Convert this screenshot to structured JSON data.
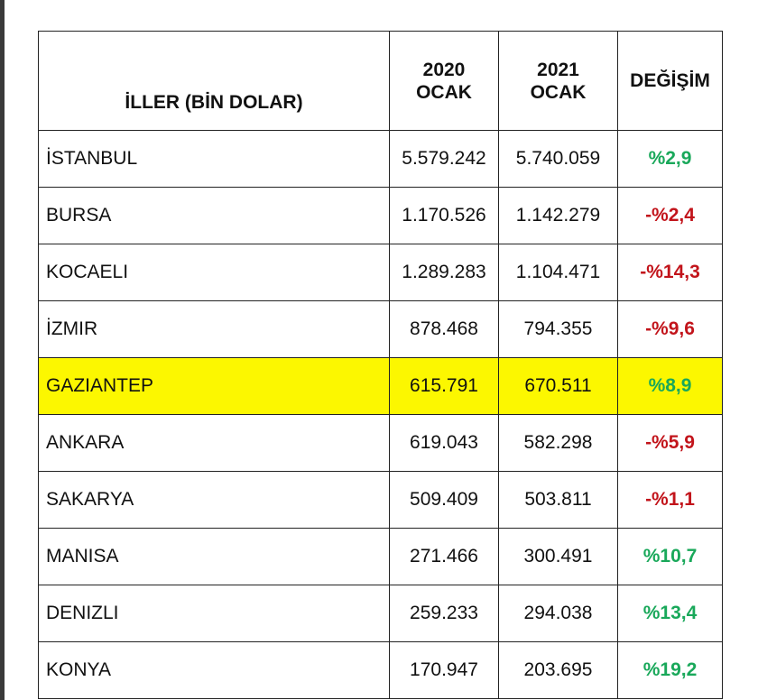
{
  "table": {
    "headers": {
      "province": "İLLER (BİN DOLAR)",
      "year2020": [
        "2020",
        "OCAK"
      ],
      "year2021": [
        "2021",
        "OCAK"
      ],
      "change": "DEĞİŞİM"
    },
    "highlight_color": "#fcf700",
    "positive_color": "#19a85a",
    "negative_color": "#c2141b",
    "rows": [
      {
        "province": "İSTANBUL",
        "v2020": "5.579.242",
        "v2021": "5.740.059",
        "change": "%2,9",
        "trend": "pos",
        "highlight": false
      },
      {
        "province": "BURSA",
        "v2020": "1.170.526",
        "v2021": "1.142.279",
        "change": "-%2,4",
        "trend": "neg",
        "highlight": false
      },
      {
        "province": "KOCAELI",
        "v2020": "1.289.283",
        "v2021": "1.104.471",
        "change": "-%14,3",
        "trend": "neg",
        "highlight": false
      },
      {
        "province": "İZMIR",
        "v2020": "878.468",
        "v2021": "794.355",
        "change": "-%9,6",
        "trend": "neg",
        "highlight": false
      },
      {
        "province": "GAZIANTEP",
        "v2020": "615.791",
        "v2021": "670.511",
        "change": "%8,9",
        "trend": "pos",
        "highlight": true
      },
      {
        "province": "ANKARA",
        "v2020": "619.043",
        "v2021": "582.298",
        "change": "-%5,9",
        "trend": "neg",
        "highlight": false
      },
      {
        "province": "SAKARYA",
        "v2020": "509.409",
        "v2021": "503.811",
        "change": "-%1,1",
        "trend": "neg",
        "highlight": false
      },
      {
        "province": "MANISA",
        "v2020": "271.466",
        "v2021": "300.491",
        "change": "%10,7",
        "trend": "pos",
        "highlight": false
      },
      {
        "province": "DENIZLI",
        "v2020": "259.233",
        "v2021": "294.038",
        "change": "%13,4",
        "trend": "pos",
        "highlight": false
      },
      {
        "province": "KONYA",
        "v2020": "170.947",
        "v2021": "203.695",
        "change": "%19,2",
        "trend": "pos",
        "highlight": false
      }
    ]
  }
}
